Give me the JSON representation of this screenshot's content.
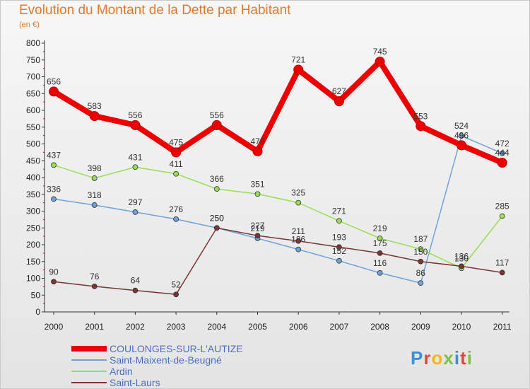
{
  "title": "Evolution du Montant de la Dette par Habitant",
  "unit_label": "(en €)",
  "logo": "Proxiti",
  "chart_data": {
    "type": "line",
    "title": "Evolution du Montant de la Dette par Habitant",
    "ylabel": "(en €)",
    "x": [
      2000,
      2001,
      2002,
      2003,
      2004,
      2005,
      2006,
      2007,
      2008,
      2009,
      2010,
      2011
    ],
    "ylim": [
      0,
      800
    ],
    "yticks": [
      0,
      50,
      100,
      150,
      200,
      250,
      300,
      350,
      400,
      450,
      500,
      550,
      600,
      650,
      700,
      750,
      800
    ],
    "grid": false,
    "legend_position": "bottom-left",
    "series": [
      {
        "name": "COULONGES-SUR-L'AUTIZE",
        "color": "#ee0000",
        "values": [
          656,
          583,
          556,
          475,
          556,
          478,
          721,
          627,
          745,
          553,
          496,
          444
        ]
      },
      {
        "name": "Saint-Maixent-de-Beugné",
        "color": "#6fa3d8",
        "values": [
          336,
          318,
          297,
          276,
          250,
          219,
          186,
          152,
          116,
          86,
          524,
          472
        ]
      },
      {
        "name": "Ardin",
        "color": "#99dd55",
        "values": [
          437,
          398,
          431,
          411,
          366,
          351,
          325,
          271,
          219,
          187,
          130,
          285
        ]
      },
      {
        "name": "Saint-Laurs",
        "color": "#7a3535",
        "values": [
          90,
          76,
          64,
          52,
          250,
          227,
          211,
          193,
          175,
          150,
          136,
          117
        ]
      }
    ]
  }
}
